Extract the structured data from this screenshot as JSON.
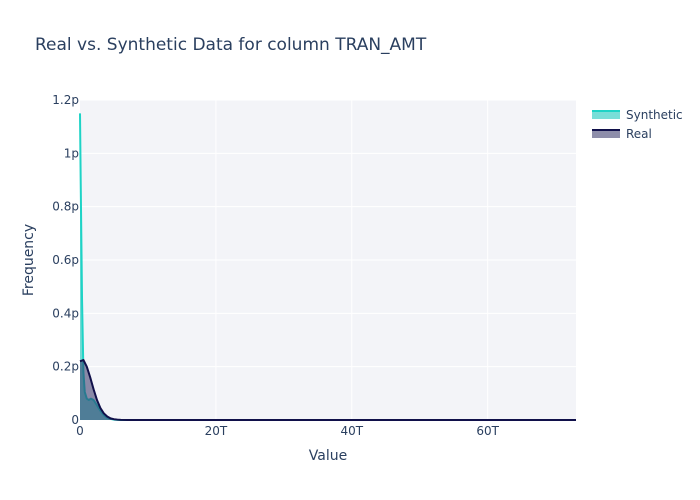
{
  "chart_data": {
    "type": "area",
    "title": "Real vs. Synthetic Data for column TRAN_AMT",
    "xlabel": "Value",
    "ylabel": "Frequency",
    "xlim": [
      0,
      73000000000000
    ],
    "ylim": [
      0,
      1.2e-12
    ],
    "x_ticks": [
      {
        "value": 0,
        "label": "0"
      },
      {
        "value": 20000000000000,
        "label": "20T"
      },
      {
        "value": 40000000000000,
        "label": "40T"
      },
      {
        "value": 60000000000000,
        "label": "60T"
      }
    ],
    "y_ticks": [
      {
        "value": 0,
        "label": "0"
      },
      {
        "value": 2e-13,
        "label": "0.2p"
      },
      {
        "value": 4e-13,
        "label": "0.4p"
      },
      {
        "value": 6e-13,
        "label": "0.6p"
      },
      {
        "value": 8e-13,
        "label": "0.8p"
      },
      {
        "value": 1e-12,
        "label": "1p"
      },
      {
        "value": 1.2e-12,
        "label": "1.2p"
      }
    ],
    "legend_position": "top-right",
    "series": [
      {
        "name": "Synthetic",
        "color": "#1ed3c6",
        "fill": "rgba(30,200,190,0.6)",
        "x": [
          0,
          100000000000,
          300000000000,
          500000000000,
          700000000000,
          1000000000000,
          1300000000000,
          1600000000000,
          2000000000000,
          2500000000000,
          3000000000000,
          3500000000000,
          4000000000000,
          4500000000000,
          5000000000000,
          5500000000000,
          6000000000000,
          7000000000000,
          10000000000000,
          73000000000000
        ],
        "y": [
          1.15e-12,
          9e-13,
          4.5e-13,
          1.8e-13,
          1.05e-13,
          8e-14,
          7.5e-14,
          8e-14,
          7.5e-14,
          5.5e-14,
          3.5e-14,
          1.8e-14,
          8e-15,
          4e-15,
          1.5e-15,
          5e-16,
          2e-16,
          0,
          0,
          0
        ]
      },
      {
        "name": "Real",
        "color": "#10104a",
        "fill": "rgba(50,50,100,0.55)",
        "x": [
          0,
          500000000000,
          1000000000000,
          1500000000000,
          2000000000000,
          2500000000000,
          3000000000000,
          3500000000000,
          4000000000000,
          4500000000000,
          5000000000000,
          5500000000000,
          6000000000000,
          7000000000000,
          8000000000000,
          10000000000000,
          73000000000000
        ],
        "y": [
          2.2e-13,
          2.25e-13,
          2e-13,
          1.6e-13,
          1.15e-13,
          7.5e-14,
          4.5e-14,
          2.5e-14,
          1.3e-14,
          6e-15,
          3e-15,
          1.5e-15,
          6e-16,
          2e-16,
          0,
          0,
          0
        ]
      }
    ]
  }
}
